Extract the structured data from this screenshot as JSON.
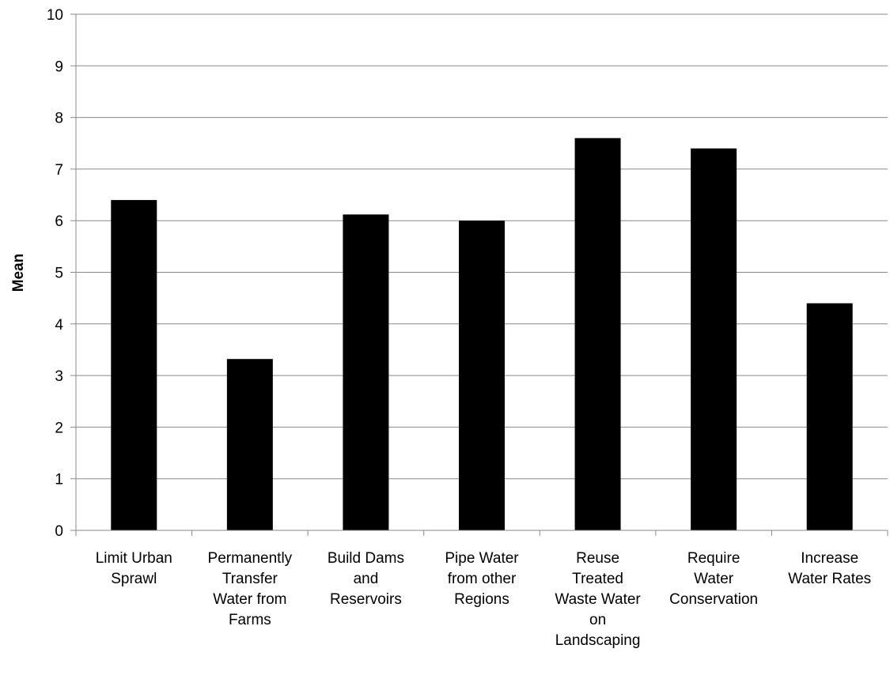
{
  "chart_data": {
    "type": "bar",
    "ylabel": "Mean",
    "ylim": [
      0,
      10
    ],
    "yticks": [
      "0",
      "1",
      "2",
      "3",
      "4",
      "5",
      "6",
      "7",
      "8",
      "9",
      "10"
    ],
    "grid": true,
    "bar_color": "#000000",
    "categories": [
      [
        "Limit Urban",
        "Sprawl"
      ],
      [
        "Permanently",
        "Transfer",
        "Water from",
        "Farms"
      ],
      [
        "Build Dams",
        "and",
        "Reservoirs"
      ],
      [
        "Pipe Water",
        "from other",
        "Regions"
      ],
      [
        "Reuse",
        "Treated",
        "Waste Water",
        "on",
        "Landscaping"
      ],
      [
        "Require",
        "Water",
        "Conservation"
      ],
      [
        "Increase",
        "Water Rates"
      ]
    ],
    "values": [
      6.4,
      3.32,
      6.12,
      6.0,
      7.6,
      7.4,
      4.4
    ]
  }
}
